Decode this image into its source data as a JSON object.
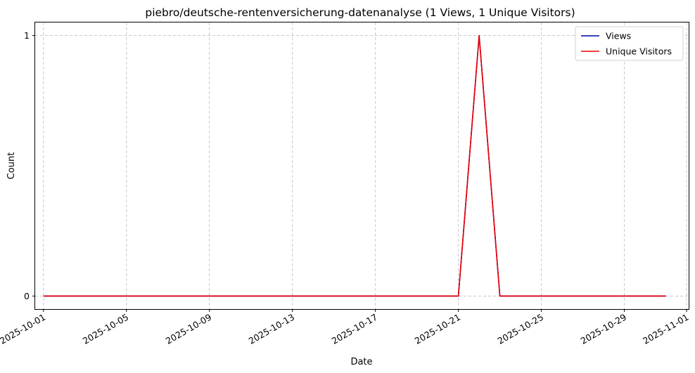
{
  "chart_data": {
    "type": "line",
    "title": "piebro/deutsche-rentenversicherung-datenanalyse (1 Views, 1 Unique Visitors)",
    "xlabel": "Date",
    "ylabel": "Count",
    "x": [
      "2025-10-01",
      "2025-10-02",
      "2025-10-03",
      "2025-10-04",
      "2025-10-05",
      "2025-10-06",
      "2025-10-07",
      "2025-10-08",
      "2025-10-09",
      "2025-10-10",
      "2025-10-11",
      "2025-10-12",
      "2025-10-13",
      "2025-10-14",
      "2025-10-15",
      "2025-10-16",
      "2025-10-17",
      "2025-10-18",
      "2025-10-19",
      "2025-10-20",
      "2025-10-21",
      "2025-10-22",
      "2025-10-23",
      "2025-10-24",
      "2025-10-25",
      "2025-10-26",
      "2025-10-27",
      "2025-10-28",
      "2025-10-29",
      "2025-10-30",
      "2025-10-31"
    ],
    "series": [
      {
        "name": "Views",
        "color": "#0000aa",
        "values": [
          0,
          0,
          0,
          0,
          0,
          0,
          0,
          0,
          0,
          0,
          0,
          0,
          0,
          0,
          0,
          0,
          0,
          0,
          0,
          0,
          0,
          1,
          0,
          0,
          0,
          0,
          0,
          0,
          0,
          0,
          0
        ]
      },
      {
        "name": "Unique Visitors",
        "color": "#ee0000",
        "values": [
          0,
          0,
          0,
          0,
          0,
          0,
          0,
          0,
          0,
          0,
          0,
          0,
          0,
          0,
          0,
          0,
          0,
          0,
          0,
          0,
          0,
          1,
          0,
          0,
          0,
          0,
          0,
          0,
          0,
          0,
          0
        ]
      }
    ],
    "xticks": [
      "2025-10-01",
      "2025-10-05",
      "2025-10-09",
      "2025-10-13",
      "2025-10-17",
      "2025-10-21",
      "2025-10-25",
      "2025-10-29",
      "2025-11-01"
    ],
    "yticks": [
      0,
      1
    ],
    "ylim": [
      -0.05,
      1.05
    ],
    "xlim": [
      "2025-09-30",
      "2025-11-01"
    ],
    "grid": true,
    "legend_position": "top-right"
  }
}
